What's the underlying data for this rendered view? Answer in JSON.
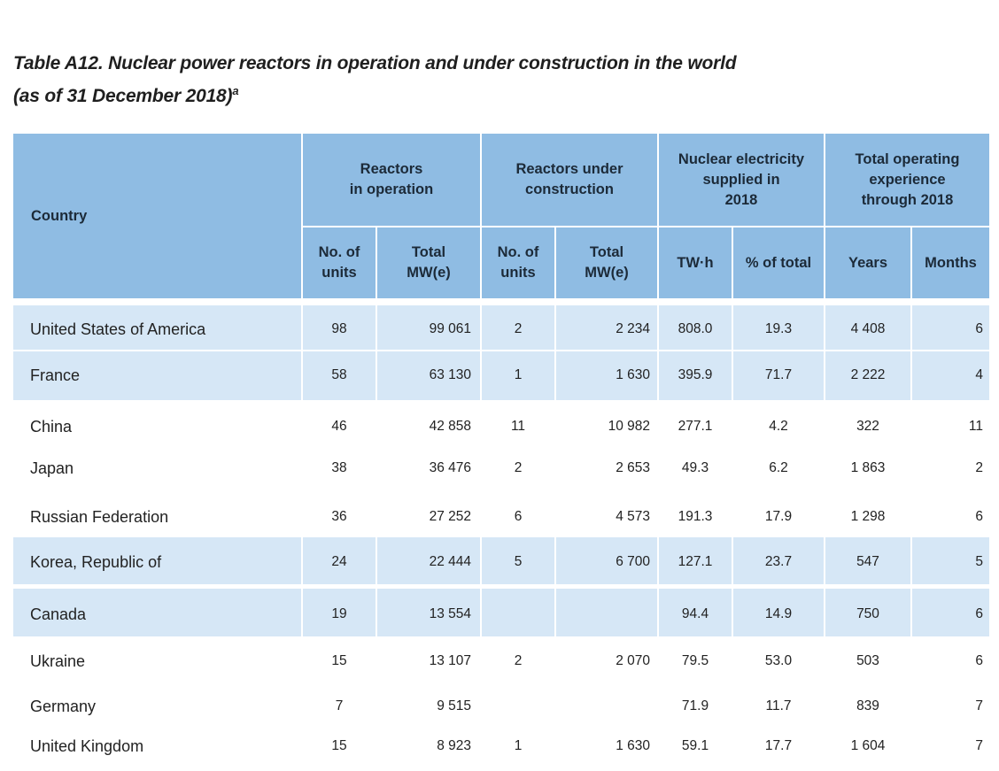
{
  "title": {
    "line1": "Table  A12.  Nuclear power reactors in operation and under construction in the world",
    "line2": "(as of 31 December 2018)",
    "footnote_mark": "a"
  },
  "header": {
    "country": "Country",
    "groups": {
      "in_operation": "Reactors\nin operation",
      "under_construction": "Reactors under\nconstruction",
      "electricity": "Nuclear electricity\nsupplied in\n2018",
      "experience": "Total operating\nexperience\nthrough 2018"
    },
    "subheaders": {
      "op_units": "No. of\nunits",
      "op_mwe": "Total\nMW(e)",
      "uc_units": "No. of\nunits",
      "uc_mwe": "Total\nMW(e)",
      "twh": "TW·h",
      "pct": "% of total",
      "years": "Years",
      "months": "Months"
    }
  },
  "rows": [
    {
      "country": "United States of America",
      "op_units": "98",
      "op_mwe": "99 061",
      "uc_units": "2",
      "uc_mwe": "2 234",
      "twh": "808.0",
      "pct": "19.3",
      "years": "4 408",
      "months": "6"
    },
    {
      "country": "France",
      "op_units": "58",
      "op_mwe": "63 130",
      "uc_units": "1",
      "uc_mwe": "1 630",
      "twh": "395.9",
      "pct": "71.7",
      "years": "2 222",
      "months": "4"
    },
    {
      "country": "China",
      "op_units": "46",
      "op_mwe": "42 858",
      "uc_units": "11",
      "uc_mwe": "10 982",
      "twh": "277.1",
      "pct": "4.2",
      "years": "322",
      "months": "11"
    },
    {
      "country": "Japan",
      "op_units": "38",
      "op_mwe": "36 476",
      "uc_units": "2",
      "uc_mwe": "2 653",
      "twh": "49.3",
      "pct": "6.2",
      "years": "1 863",
      "months": "2"
    },
    {
      "country": "Russian Federation",
      "op_units": "36",
      "op_mwe": "27 252",
      "uc_units": "6",
      "uc_mwe": "4 573",
      "twh": "191.3",
      "pct": "17.9",
      "years": "1 298",
      "months": "6"
    },
    {
      "country": "Korea, Republic of",
      "op_units": "24",
      "op_mwe": "22 444",
      "uc_units": "5",
      "uc_mwe": "6 700",
      "twh": "127.1",
      "pct": "23.7",
      "years": "547",
      "months": "5"
    },
    {
      "country": "Canada",
      "op_units": "19",
      "op_mwe": "13 554",
      "uc_units": "",
      "uc_mwe": "",
      "twh": "94.4",
      "pct": "14.9",
      "years": "750",
      "months": "6"
    },
    {
      "country": "Ukraine",
      "op_units": "15",
      "op_mwe": "13 107",
      "uc_units": "2",
      "uc_mwe": "2 070",
      "twh": "79.5",
      "pct": "53.0",
      "years": "503",
      "months": "6"
    },
    {
      "country": "Germany",
      "op_units": "7",
      "op_mwe": "9 515",
      "uc_units": "",
      "uc_mwe": "",
      "twh": "71.9",
      "pct": "11.7",
      "years": "839",
      "months": "7"
    },
    {
      "country": "United Kingdom",
      "op_units": "15",
      "op_mwe": "8 923",
      "uc_units": "1",
      "uc_mwe": "1 630",
      "twh": "59.1",
      "pct": "17.7",
      "years": "1 604",
      "months": "7"
    }
  ],
  "colors": {
    "header_bg": "#8fbce3",
    "band_bg": "#d6e7f6"
  }
}
